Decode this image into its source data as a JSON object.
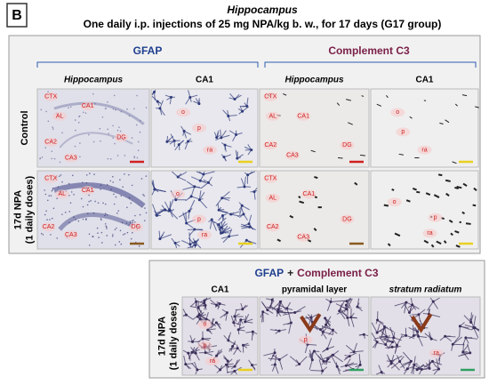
{
  "figure": {
    "panel_label": "B",
    "title": "Hippocampus",
    "subtitle": "One daily i.p. injections of 25 mg NPA/kg b. w., for 17 days  (G17 group)"
  },
  "top": {
    "stains": [
      "GFAP",
      "Complement C3"
    ],
    "columns": [
      "Hippocampus",
      "CA1",
      "Hippocampus",
      "CA1"
    ],
    "rows": [
      {
        "label": [
          "Control"
        ],
        "images": [
          [
            "CTX",
            "CA1",
            "AL",
            "CA2",
            "DG",
            "CA3"
          ],
          [
            "o",
            "p",
            "ra"
          ],
          [
            "CTX",
            "AL",
            "CA1",
            "CA2",
            "DG",
            "CA3"
          ],
          [
            "o",
            "p",
            "ra"
          ]
        ]
      },
      {
        "label": [
          "17d NPA",
          "(1 daily doses)"
        ],
        "images": [
          [
            "CTX",
            "AL",
            "CA1",
            "CA2",
            "CA3",
            "DG"
          ],
          [
            "o",
            "p",
            "ra"
          ],
          [
            "CTX",
            "AL",
            "CA1",
            "CA2",
            "DG",
            "CA3"
          ],
          [
            "o",
            "p",
            "ra"
          ]
        ]
      }
    ]
  },
  "bottom": {
    "title": [
      "GFAP",
      "+",
      "Complement C3"
    ],
    "columns": [
      "CA1",
      "pyramidal layer",
      "stratum radiatum"
    ],
    "label": [
      "17d NPA",
      "(1 daily doses)"
    ],
    "images": [
      [
        "o",
        "p",
        "ra"
      ],
      [
        "p"
      ],
      [
        "ra"
      ]
    ]
  }
}
